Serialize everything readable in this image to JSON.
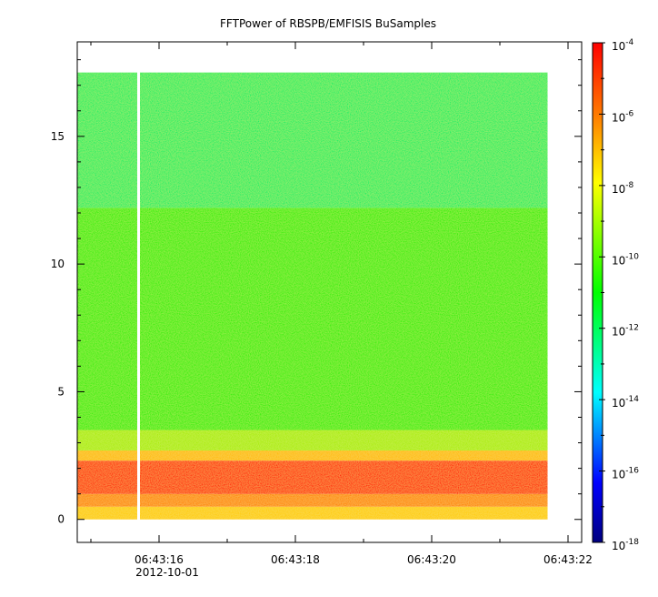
{
  "chart_data": {
    "type": "heatmap",
    "title": "FFTPower of RBSPB/EMFISIS  BuSamples",
    "xlabel": "",
    "ylabel": "",
    "x_start": "2012-10-01 06:43:14.8",
    "x_end": "2012-10-01 06:43:22.2",
    "data_x_start": "06:43:14.8",
    "data_x_end": "06:43:21.7",
    "xlim_seconds": [
      14.8,
      22.2
    ],
    "x_ticks": [
      "06:43:16",
      "06:43:18",
      "06:43:20",
      "06:43:22"
    ],
    "x_date_label": "2012-10-01",
    "ylim": [
      -0.9,
      18.7
    ],
    "y_ticks": [
      "0",
      "5",
      "10",
      "15"
    ],
    "y_tick_values": [
      0,
      5,
      10,
      15
    ],
    "data_y_range": [
      0,
      17.5
    ],
    "colorbar": {
      "scale": "log",
      "range": [
        "1e-18",
        "1e-4"
      ],
      "ticks": [
        "10-4",
        "10-6",
        "10-8",
        "10-10",
        "10-12",
        "10-14",
        "10-16",
        "10-18"
      ],
      "colors": [
        "#00007f",
        "#0000ff",
        "#00ffff",
        "#00ff00",
        "#ffff00",
        "#ff7f00",
        "#ff0000"
      ]
    },
    "bands": [
      {
        "y_from": 0.0,
        "y_to": 0.5,
        "level": "1e-8",
        "color": "#ffcc00"
      },
      {
        "y_from": 0.5,
        "y_to": 1.0,
        "level": "1e-7",
        "color": "#ff8800"
      },
      {
        "y_from": 1.0,
        "y_to": 2.3,
        "level": "1e-6",
        "color": "#ff2200"
      },
      {
        "y_from": 2.3,
        "y_to": 2.7,
        "level": "1e-8",
        "color": "#ffbb00"
      },
      {
        "y_from": 2.7,
        "y_to": 3.5,
        "level": "1e-10",
        "color": "#aaee00"
      },
      {
        "y_from": 3.5,
        "y_to": 12.2,
        "level": "1e-11",
        "color": "#33ee00"
      },
      {
        "y_from": 12.2,
        "y_to": 17.5,
        "level": "1e-12",
        "color": "#00ee66"
      }
    ],
    "gap_at": "06:43:15.7"
  }
}
